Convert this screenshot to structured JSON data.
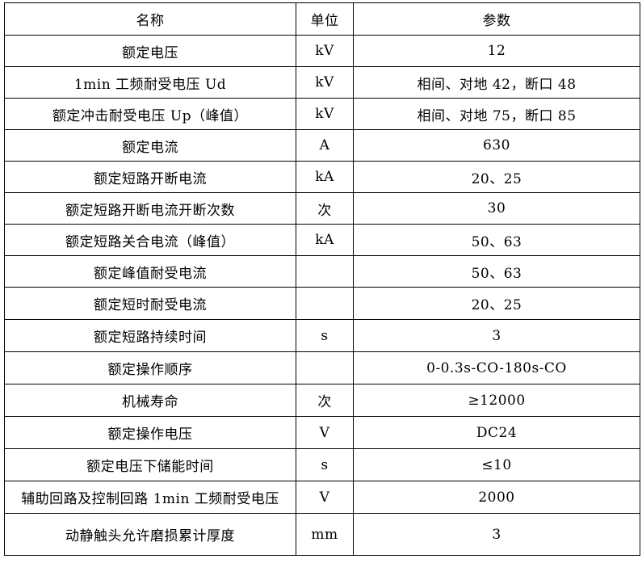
{
  "colors": {
    "page_bg": "#ffffff",
    "border": "#000000",
    "text": "#000000"
  },
  "table": {
    "headers": [
      "名称",
      "单位",
      "参数"
    ],
    "rows": [
      {
        "name": "额定电压",
        "unit": "kV",
        "value": "12"
      },
      {
        "name": "1min 工频耐受电压 Ud",
        "unit": "kV",
        "value": "相间、对地 42，断口 48"
      },
      {
        "name": "额定冲击耐受电压 Up（峰值）",
        "unit": "kV",
        "value": "相间、对地 75，断口 85"
      },
      {
        "name": "额定电流",
        "unit": "A",
        "value": "630"
      },
      {
        "name": "额定短路开断电流",
        "unit": "kA",
        "value": "20、25"
      },
      {
        "name": "额定短路开断电流开断次数",
        "unit": "次",
        "value": "30"
      },
      {
        "name": "额定短路关合电流（峰值）",
        "unit": "kA",
        "value": "50、63"
      },
      {
        "name": "额定峰值耐受电流",
        "unit": "",
        "value": "50、63"
      },
      {
        "name": "额定短时耐受电流",
        "unit": "",
        "value": "20、25"
      },
      {
        "name": "额定短路持续时间",
        "unit": "s",
        "value": "3"
      },
      {
        "name": "额定操作顺序",
        "unit": "",
        "value": "0-0.3s-CO-180s-CO"
      },
      {
        "name": "机械寿命",
        "unit": "次",
        "value": "≥12000"
      },
      {
        "name": "额定操作电压",
        "unit": "V",
        "value": "DC24"
      },
      {
        "name": "额定电压下储能时间",
        "unit": "s",
        "value": "≤10"
      },
      {
        "name": "辅助回路及控制回路 1min 工频耐受电压",
        "unit": "V",
        "value": "2000"
      },
      {
        "name": "动静触头允许磨损累计厚度",
        "unit": "mm",
        "value": "3"
      }
    ]
  }
}
